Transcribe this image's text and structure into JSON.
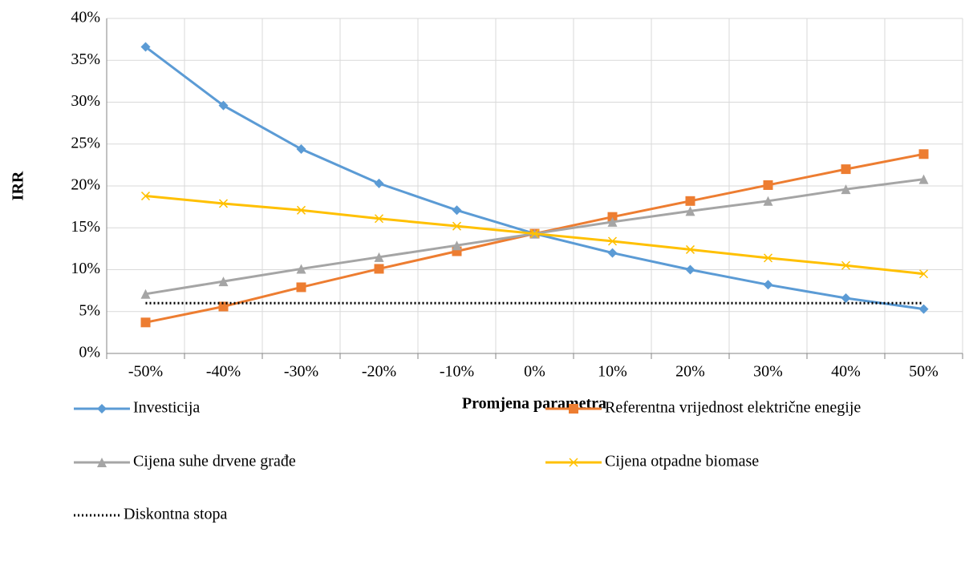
{
  "chart_data": {
    "type": "line",
    "xlabel": "Promjena parametra",
    "ylabel": "IRR",
    "categories": [
      "-50%",
      "-40%",
      "-30%",
      "-20%",
      "-10%",
      "0%",
      "10%",
      "20%",
      "30%",
      "40%",
      "50%"
    ],
    "ylim": [
      0,
      40
    ],
    "yticks": [
      {
        "value": 0,
        "label": "0%"
      },
      {
        "value": 5,
        "label": "5%"
      },
      {
        "value": 10,
        "label": "10%"
      },
      {
        "value": 15,
        "label": "15%"
      },
      {
        "value": 20,
        "label": "20%"
      },
      {
        "value": 25,
        "label": "25%"
      },
      {
        "value": 30,
        "label": "30%"
      },
      {
        "value": 35,
        "label": "35%"
      },
      {
        "value": 40,
        "label": "40%"
      }
    ],
    "grid": true,
    "legend": "bottom",
    "series": [
      {
        "name": "Investicija",
        "color": "#5b9bd5",
        "marker": "diamond",
        "values": [
          36.6,
          29.6,
          24.4,
          20.3,
          17.1,
          14.3,
          12.0,
          10.0,
          8.2,
          6.6,
          5.3
        ]
      },
      {
        "name": "Referentna vrijednost električne enegije",
        "color": "#ed7d31",
        "marker": "square",
        "values": [
          3.7,
          5.6,
          7.9,
          10.1,
          12.2,
          14.3,
          16.3,
          18.2,
          20.1,
          22.0,
          23.8
        ]
      },
      {
        "name": "Cijena suhe drvene građe",
        "color": "#a5a5a5",
        "marker": "triangle",
        "values": [
          7.1,
          8.6,
          10.1,
          11.5,
          12.9,
          14.3,
          15.7,
          17.0,
          18.2,
          19.6,
          20.8
        ]
      },
      {
        "name": "Cijena otpadne biomase",
        "color": "#ffc000",
        "marker": "x",
        "values": [
          18.8,
          17.9,
          17.1,
          16.1,
          15.2,
          14.3,
          13.4,
          12.4,
          11.4,
          10.5,
          9.5
        ]
      },
      {
        "name": "Diskontna stopa",
        "color": "#000000",
        "marker": "none",
        "dash": "dotted",
        "values": [
          6,
          6,
          6,
          6,
          6,
          6,
          6,
          6,
          6,
          6,
          6
        ]
      }
    ]
  }
}
